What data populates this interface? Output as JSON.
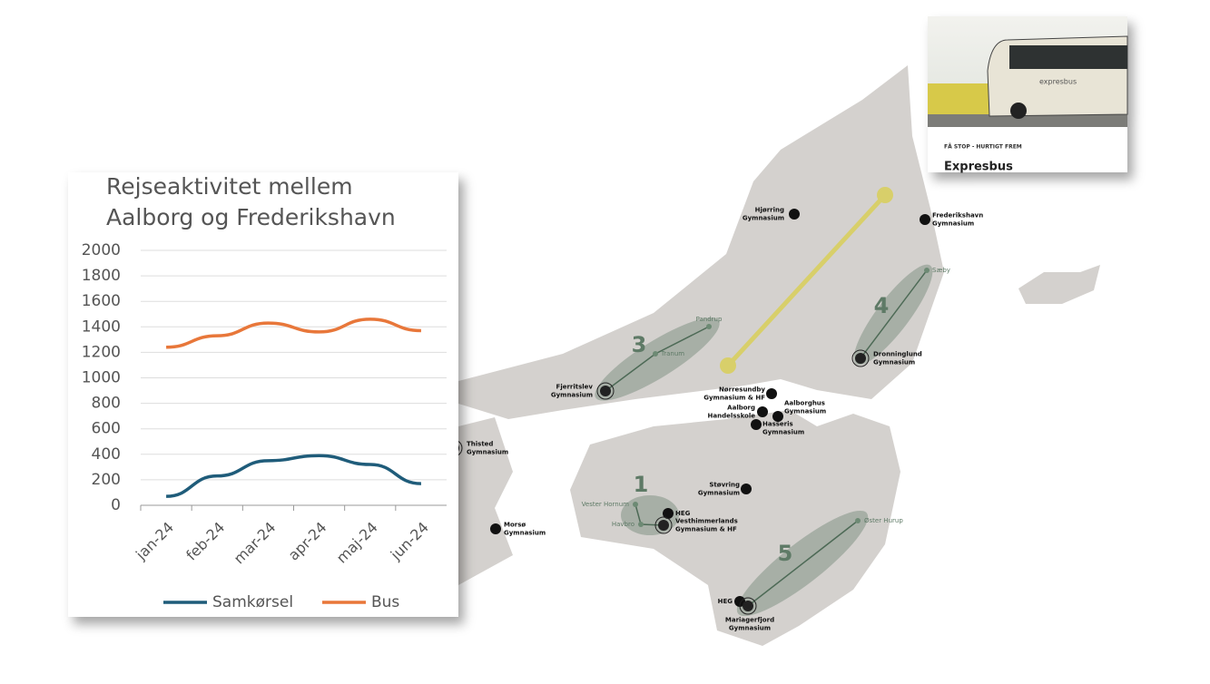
{
  "chart_data": {
    "type": "line",
    "title": [
      "Rejseaktivitet mellem",
      "Aalborg og Frederikshavn"
    ],
    "categories": [
      "jan-24",
      "feb-24",
      "mar-24",
      "apr-24",
      "maj-24",
      "jun-24"
    ],
    "series": [
      {
        "name": "Samkørsel",
        "color": "#1f5c7a",
        "values": [
          70,
          230,
          350,
          390,
          320,
          170
        ]
      },
      {
        "name": "Bus",
        "color": "#e8773a",
        "values": [
          1240,
          1330,
          1430,
          1360,
          1460,
          1370
        ]
      }
    ],
    "ylim": [
      0,
      2000
    ],
    "yticks": [
      0,
      200,
      400,
      600,
      800,
      1000,
      1200,
      1400,
      1600,
      1800,
      2000
    ],
    "grid": true,
    "legend": "bottom"
  },
  "map": {
    "routes": [
      "1",
      "3",
      "4",
      "5"
    ],
    "places": [
      {
        "lines": [
          "Hjørring",
          "Gymnasium"
        ]
      },
      {
        "lines": [
          "Frederikshavn",
          "Gymnasium"
        ]
      },
      {
        "lines": [
          "Sæby"
        ]
      },
      {
        "lines": [
          "Dronninglund",
          "Gymnasium"
        ]
      },
      {
        "lines": [
          "Pandrup"
        ]
      },
      {
        "lines": [
          "Tranum"
        ]
      },
      {
        "lines": [
          "Fjerritslev",
          "Gymnasium"
        ]
      },
      {
        "lines": [
          "Nørresundby",
          "Gymnasium & HF"
        ]
      },
      {
        "lines": [
          "Aalborg",
          "Handelsskole"
        ]
      },
      {
        "lines": [
          "Aalborghus",
          "Gymnasium"
        ]
      },
      {
        "lines": [
          "Hasseris",
          "Gymnasium"
        ]
      },
      {
        "lines": [
          "Thisted",
          "Gymnasium"
        ]
      },
      {
        "lines": [
          "Morsø",
          "Gymnasium"
        ]
      },
      {
        "lines": [
          "Støvring",
          "Gymnasium"
        ]
      },
      {
        "lines": [
          "Vester Hornum"
        ]
      },
      {
        "lines": [
          "HEG"
        ]
      },
      {
        "lines": [
          "Havbro"
        ]
      },
      {
        "lines": [
          "Vesthimmerlands",
          "Gymnasium & HF"
        ]
      },
      {
        "lines": [
          "Øster Hurup"
        ]
      },
      {
        "lines": [
          "HEG"
        ]
      },
      {
        "lines": [
          "Mariagerfjord",
          "Gymnasium"
        ]
      }
    ]
  },
  "card": {
    "bus_text": "expresbus",
    "kicker": "FÅ STOP - HURTIGT FREM",
    "title": "Expresbus"
  }
}
